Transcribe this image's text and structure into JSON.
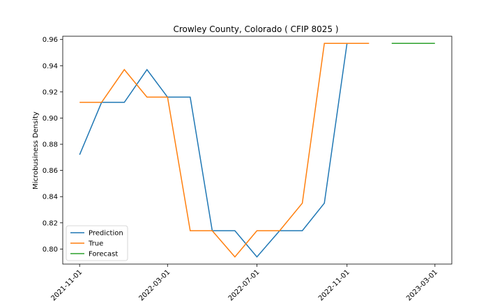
{
  "chart_data": {
    "type": "line",
    "title": "Crowley County, Colorado ( CFIP 8025 )",
    "xlabel": "",
    "ylabel": "Microbusiness Density",
    "x_tick_labels": [
      "2021-11-01",
      "2022-03-01",
      "2022-07-01",
      "2022-11-01",
      "2023-03-01"
    ],
    "y_tick_labels": [
      "0.80",
      "0.82",
      "0.84",
      "0.86",
      "0.88",
      "0.90",
      "0.92",
      "0.94",
      "0.96"
    ],
    "ylim": [
      0.7885,
      0.9625
    ],
    "xlim": [
      "2021-10-09",
      "2023-03-24"
    ],
    "grid": false,
    "legend_position": "lower-left",
    "series": [
      {
        "name": "Prediction",
        "color": "#1f77b4",
        "x": [
          "2021-11-01",
          "2021-12-01",
          "2022-01-01",
          "2022-02-01",
          "2022-03-01",
          "2022-04-01",
          "2022-05-01",
          "2022-06-01",
          "2022-07-01",
          "2022-08-01",
          "2022-09-01",
          "2022-10-01",
          "2022-11-01"
        ],
        "y": [
          0.872,
          0.912,
          0.912,
          0.937,
          0.916,
          0.916,
          0.814,
          0.814,
          0.794,
          0.814,
          0.814,
          0.835,
          0.957
        ]
      },
      {
        "name": "True",
        "color": "#ff7f0e",
        "x": [
          "2021-11-01",
          "2021-12-01",
          "2022-01-01",
          "2022-02-01",
          "2022-03-01",
          "2022-04-01",
          "2022-05-01",
          "2022-06-01",
          "2022-07-01",
          "2022-08-01",
          "2022-09-01",
          "2022-10-01",
          "2022-11-01",
          "2022-12-01"
        ],
        "y": [
          0.912,
          0.912,
          0.937,
          0.916,
          0.916,
          0.814,
          0.814,
          0.794,
          0.814,
          0.814,
          0.835,
          0.957,
          0.957,
          0.957
        ]
      },
      {
        "name": "Forecast",
        "color": "#2ca02c",
        "x": [
          "2023-01-01",
          "2023-02-01",
          "2023-03-01"
        ],
        "y": [
          0.957,
          0.957,
          0.957
        ]
      }
    ]
  }
}
